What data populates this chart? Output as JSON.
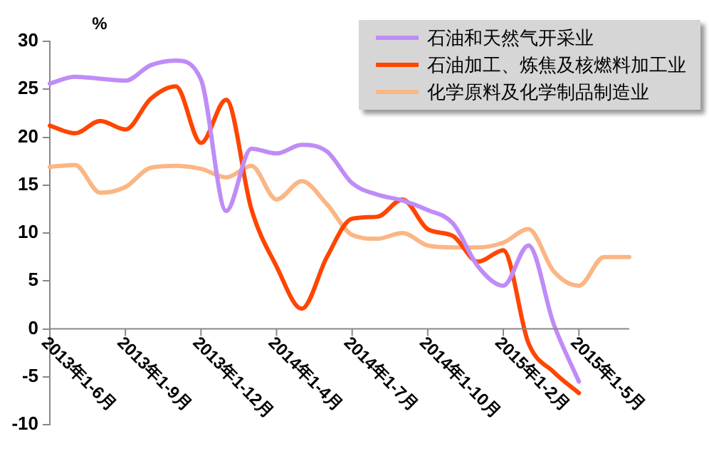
{
  "chart_data": {
    "type": "line",
    "ylabel": "%",
    "categories": [
      "2013年1-6月",
      null,
      null,
      "2013年1-9月",
      null,
      null,
      "2013年1-12月",
      null,
      null,
      "2014年1-4月",
      null,
      null,
      "2014年1-7月",
      null,
      null,
      "2014年1-10月",
      null,
      null,
      "2015年1-2月",
      null,
      null,
      "2015年1-5月",
      null,
      null
    ],
    "series": [
      {
        "name": "石油和天然气开采业",
        "color": "#bf8cf7",
        "values": [
          25.6,
          26.3,
          26.1,
          25.9,
          27.5,
          28.0,
          26.0,
          12.3,
          18.8,
          18.3,
          19.2,
          18.5,
          15.2,
          14.0,
          13.4,
          12.4,
          11.0,
          6.5,
          4.5,
          8.7,
          0.5,
          -5.5,
          null,
          null
        ]
      },
      {
        "name": "石油加工、炼焦及核燃料加工业",
        "color": "#ff4500",
        "values": [
          21.2,
          20.4,
          21.7,
          20.8,
          24.0,
          25.3,
          19.4,
          23.9,
          12.5,
          6.5,
          2.1,
          7.5,
          11.5,
          11.7,
          13.5,
          10.4,
          9.7,
          7.0,
          8.2,
          -1.5,
          -4.5,
          -6.7,
          null,
          null
        ]
      },
      {
        "name": "化学原料及化学制品制造业",
        "color": "#fbb684",
        "values": [
          16.9,
          17.1,
          14.2,
          14.8,
          16.8,
          17.0,
          16.7,
          15.8,
          17.0,
          13.5,
          15.4,
          13.0,
          9.8,
          9.4,
          10.0,
          8.7,
          8.5,
          8.5,
          9.0,
          10.4,
          6.0,
          4.5,
          7.5,
          7.5
        ]
      }
    ],
    "ylim": [
      -10,
      30
    ],
    "yticks": [
      -10,
      -5,
      0,
      5,
      10,
      15,
      20,
      25,
      30
    ],
    "grid": false,
    "legend": "top right",
    "marker": "none",
    "line_style": "solid"
  }
}
